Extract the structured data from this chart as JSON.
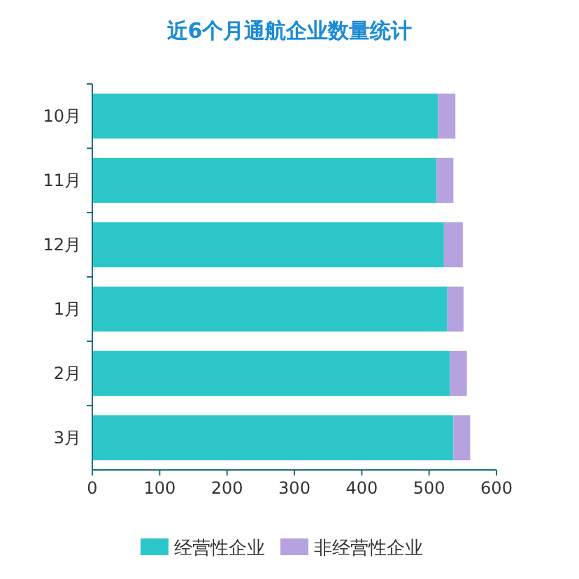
{
  "chart_data": {
    "type": "bar",
    "orientation": "horizontal",
    "stacked": true,
    "title": "近6个月通航企业数量统计",
    "categories": [
      "10月",
      "11月",
      "12月",
      "1月",
      "2月",
      "3月"
    ],
    "series": [
      {
        "name": "经营性企业",
        "color": "#2ec7c9",
        "values": [
          513,
          511,
          522,
          527,
          531,
          536
        ]
      },
      {
        "name": "非经营性企业",
        "color": "#b6a2de",
        "values": [
          26,
          25,
          28,
          24,
          25,
          25
        ]
      }
    ],
    "xlim": [
      0,
      600
    ],
    "xticks": [
      0,
      100,
      200,
      300,
      400,
      500,
      600
    ],
    "grid": false,
    "legend": "bottom"
  }
}
